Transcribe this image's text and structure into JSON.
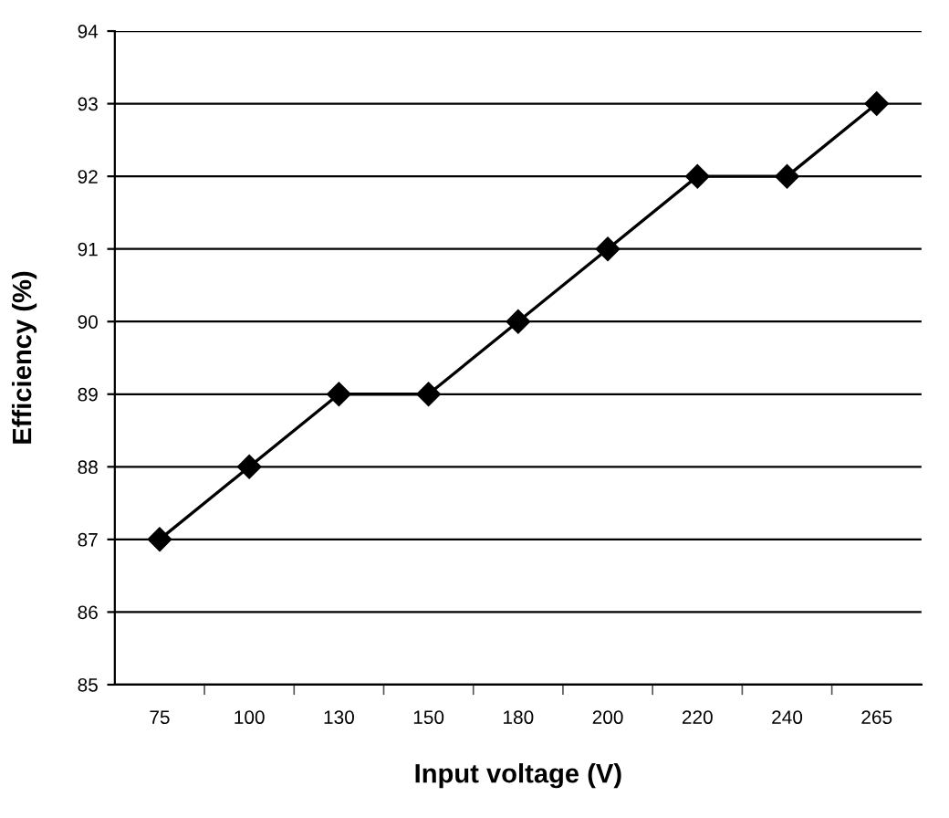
{
  "chart_data": {
    "type": "line",
    "xlabel": "Input voltage (V)",
    "ylabel": "Efficiency (%)",
    "categories": [
      "75",
      "100",
      "130",
      "150",
      "180",
      "200",
      "220",
      "240",
      "265"
    ],
    "series": [
      {
        "color": "#000000",
        "values": [
          87,
          88,
          89,
          89,
          90,
          91,
          92,
          92,
          93
        ]
      }
    ],
    "ylim": [
      85,
      94
    ],
    "yticks": [
      85,
      86,
      87,
      88,
      89,
      90,
      91,
      92,
      93,
      94
    ],
    "grid": "y",
    "marker": "diamond",
    "line_style": "solid",
    "legend": false
  }
}
